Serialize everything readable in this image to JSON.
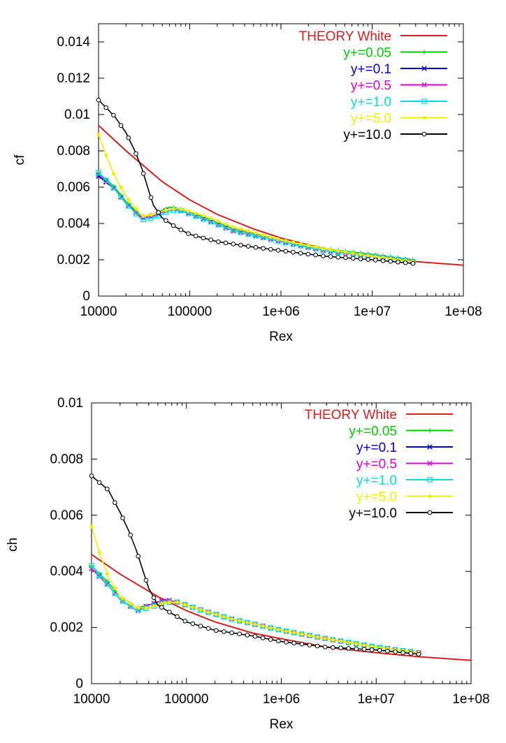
{
  "chart_data": [
    {
      "type": "line",
      "xscale": "log",
      "xlabel": "Rex",
      "ylabel": "cf",
      "xlim": [
        10000,
        100000000
      ],
      "ylim": [
        0,
        0.015
      ],
      "xticks": [
        10000,
        100000,
        1000000,
        10000000,
        100000000
      ],
      "xtick_labels": [
        "10000",
        "100000",
        "1e+06",
        "1e+07",
        "1e+08"
      ],
      "yticks": [
        0,
        0.002,
        0.004,
        0.006,
        0.008,
        0.01,
        0.012,
        0.014
      ],
      "ytick_labels": [
        "0",
        "0.002",
        "0.004",
        "0.006",
        "0.008",
        "0.01",
        "0.012",
        "0.014"
      ],
      "grid": false,
      "legend_position": "top-right",
      "series": [
        {
          "name": "THEORY White",
          "color": "#d62020",
          "marker": "none",
          "x": [
            10000,
            20000,
            50000,
            100000,
            200000,
            500000,
            1000000,
            3000000,
            10000000,
            30000000,
            100000000
          ],
          "y": [
            0.0094,
            0.008,
            0.0063,
            0.0053,
            0.0045,
            0.0037,
            0.0032,
            0.0026,
            0.0022,
            0.0019,
            0.0017
          ]
        },
        {
          "name": "y+=0.05",
          "color": "#00cc00",
          "marker": "plus",
          "x": [
            10000,
            15000,
            20000,
            30000,
            40000,
            60000,
            80000,
            150000,
            300000,
            1000000,
            3000000,
            10000000,
            28000000
          ],
          "y": [
            0.0068,
            0.006,
            0.0052,
            0.0044,
            0.0045,
            0.0049,
            0.0048,
            0.0043,
            0.0037,
            0.0031,
            0.0026,
            0.0023,
            0.002
          ]
        },
        {
          "name": "y+=0.1",
          "color": "#0000cc",
          "marker": "x",
          "x": [
            10000,
            15000,
            20000,
            30000,
            40000,
            60000,
            80000,
            150000,
            300000,
            1000000,
            3000000,
            10000000,
            28000000
          ],
          "y": [
            0.0066,
            0.0059,
            0.0051,
            0.0043,
            0.0044,
            0.0048,
            0.0047,
            0.0042,
            0.0036,
            0.003,
            0.0025,
            0.0022,
            0.0019
          ]
        },
        {
          "name": "y+=0.5",
          "color": "#dd00dd",
          "marker": "x",
          "x": [
            10000,
            15000,
            20000,
            30000,
            40000,
            60000,
            80000,
            150000,
            300000,
            1000000,
            3000000,
            10000000,
            28000000
          ],
          "y": [
            0.0067,
            0.0059,
            0.0051,
            0.0043,
            0.0044,
            0.0048,
            0.0047,
            0.0042,
            0.0036,
            0.003,
            0.0025,
            0.0022,
            0.0019
          ]
        },
        {
          "name": "y+=1.0",
          "color": "#00dddd",
          "marker": "square",
          "x": [
            10000,
            15000,
            20000,
            30000,
            40000,
            60000,
            80000,
            150000,
            300000,
            1000000,
            3000000,
            10000000,
            28000000
          ],
          "y": [
            0.0068,
            0.0059,
            0.0051,
            0.0042,
            0.0043,
            0.0047,
            0.0047,
            0.0042,
            0.0036,
            0.003,
            0.0025,
            0.0022,
            0.0019
          ]
        },
        {
          "name": "y+=5.0",
          "color": "#f0f000",
          "marker": "dot",
          "x": [
            10000,
            12000,
            15000,
            20000,
            30000,
            40000,
            60000,
            80000,
            150000,
            300000,
            1000000,
            3000000,
            10000000,
            28000000
          ],
          "y": [
            0.0089,
            0.0078,
            0.0066,
            0.0055,
            0.0044,
            0.0045,
            0.0048,
            0.0048,
            0.0044,
            0.0038,
            0.0031,
            0.0026,
            0.0022,
            0.0019
          ]
        },
        {
          "name": "y+=10.0",
          "color": "#000000",
          "marker": "circle",
          "x": [
            10000,
            15000,
            20000,
            25000,
            30000,
            35000,
            40000,
            50000,
            70000,
            100000,
            200000,
            500000,
            1000000,
            3000000,
            10000000,
            28000000
          ],
          "y": [
            0.0108,
            0.0099,
            0.009,
            0.008,
            0.007,
            0.0059,
            0.005,
            0.0043,
            0.0038,
            0.0034,
            0.003,
            0.0027,
            0.0025,
            0.0022,
            0.002,
            0.0018
          ]
        }
      ]
    },
    {
      "type": "line",
      "xscale": "log",
      "xlabel": "Rex",
      "ylabel": "ch",
      "xlim": [
        10000,
        100000000
      ],
      "ylim": [
        0,
        0.01
      ],
      "xticks": [
        10000,
        100000,
        1000000,
        10000000,
        100000000
      ],
      "xtick_labels": [
        "10000",
        "100000",
        "1e+06",
        "1e+07",
        "1e+08"
      ],
      "yticks": [
        0,
        0.002,
        0.004,
        0.006,
        0.008,
        0.01
      ],
      "ytick_labels": [
        "0",
        "0.002",
        "0.004",
        "0.006",
        "0.008",
        "0.01"
      ],
      "grid": false,
      "legend_position": "top-right",
      "series": [
        {
          "name": "THEORY White",
          "color": "#d62020",
          "marker": "none",
          "x": [
            10000,
            20000,
            50000,
            100000,
            200000,
            500000,
            1000000,
            3000000,
            10000000,
            30000000,
            100000000
          ],
          "y": [
            0.0046,
            0.0039,
            0.0031,
            0.0026,
            0.0022,
            0.0018,
            0.0016,
            0.0013,
            0.0011,
            0.00095,
            0.00083
          ]
        },
        {
          "name": "y+=0.05",
          "color": "#00cc00",
          "marker": "plus",
          "x": [
            10000,
            15000,
            20000,
            30000,
            40000,
            60000,
            80000,
            150000,
            300000,
            1000000,
            3000000,
            10000000,
            28000000
          ],
          "y": [
            0.0042,
            0.0036,
            0.0031,
            0.0027,
            0.0028,
            0.003,
            0.0029,
            0.0026,
            0.0023,
            0.0019,
            0.0016,
            0.0013,
            0.0011
          ]
        },
        {
          "name": "y+=0.1",
          "color": "#0000cc",
          "marker": "x",
          "x": [
            10000,
            15000,
            20000,
            30000,
            40000,
            60000,
            80000,
            150000,
            300000,
            1000000,
            3000000,
            10000000,
            28000000
          ],
          "y": [
            0.0041,
            0.0035,
            0.003,
            0.0026,
            0.0028,
            0.003,
            0.0029,
            0.0026,
            0.0023,
            0.0019,
            0.0016,
            0.0013,
            0.0011
          ]
        },
        {
          "name": "y+=0.5",
          "color": "#dd00dd",
          "marker": "x",
          "x": [
            10000,
            15000,
            20000,
            30000,
            40000,
            60000,
            80000,
            150000,
            300000,
            1000000,
            3000000,
            10000000,
            28000000
          ],
          "y": [
            0.0041,
            0.0035,
            0.003,
            0.0026,
            0.0028,
            0.003,
            0.0029,
            0.0026,
            0.0023,
            0.0019,
            0.0016,
            0.0013,
            0.0011
          ]
        },
        {
          "name": "y+=1.0",
          "color": "#00dddd",
          "marker": "square",
          "x": [
            10000,
            15000,
            20000,
            30000,
            40000,
            60000,
            80000,
            150000,
            300000,
            1000000,
            3000000,
            10000000,
            28000000
          ],
          "y": [
            0.0042,
            0.0035,
            0.003,
            0.0026,
            0.0027,
            0.0029,
            0.0029,
            0.0026,
            0.0023,
            0.0019,
            0.0016,
            0.0013,
            0.0011
          ]
        },
        {
          "name": "y+=5.0",
          "color": "#f0f000",
          "marker": "dot",
          "x": [
            10000,
            12000,
            15000,
            20000,
            30000,
            40000,
            60000,
            80000,
            150000,
            300000,
            1000000,
            3000000,
            10000000,
            28000000
          ],
          "y": [
            0.0056,
            0.0047,
            0.0038,
            0.0031,
            0.0027,
            0.0027,
            0.0029,
            0.0029,
            0.0026,
            0.0023,
            0.0019,
            0.0016,
            0.0013,
            0.0011
          ]
        },
        {
          "name": "y+=10.0",
          "color": "#000000",
          "marker": "circle",
          "x": [
            10000,
            15000,
            20000,
            25000,
            30000,
            35000,
            40000,
            50000,
            70000,
            100000,
            200000,
            500000,
            1000000,
            3000000,
            10000000,
            28000000
          ],
          "y": [
            0.0074,
            0.0069,
            0.0061,
            0.0054,
            0.0047,
            0.004,
            0.0034,
            0.0028,
            0.0025,
            0.0022,
            0.0019,
            0.0017,
            0.0015,
            0.0013,
            0.0012,
            0.00105
          ]
        }
      ]
    }
  ]
}
